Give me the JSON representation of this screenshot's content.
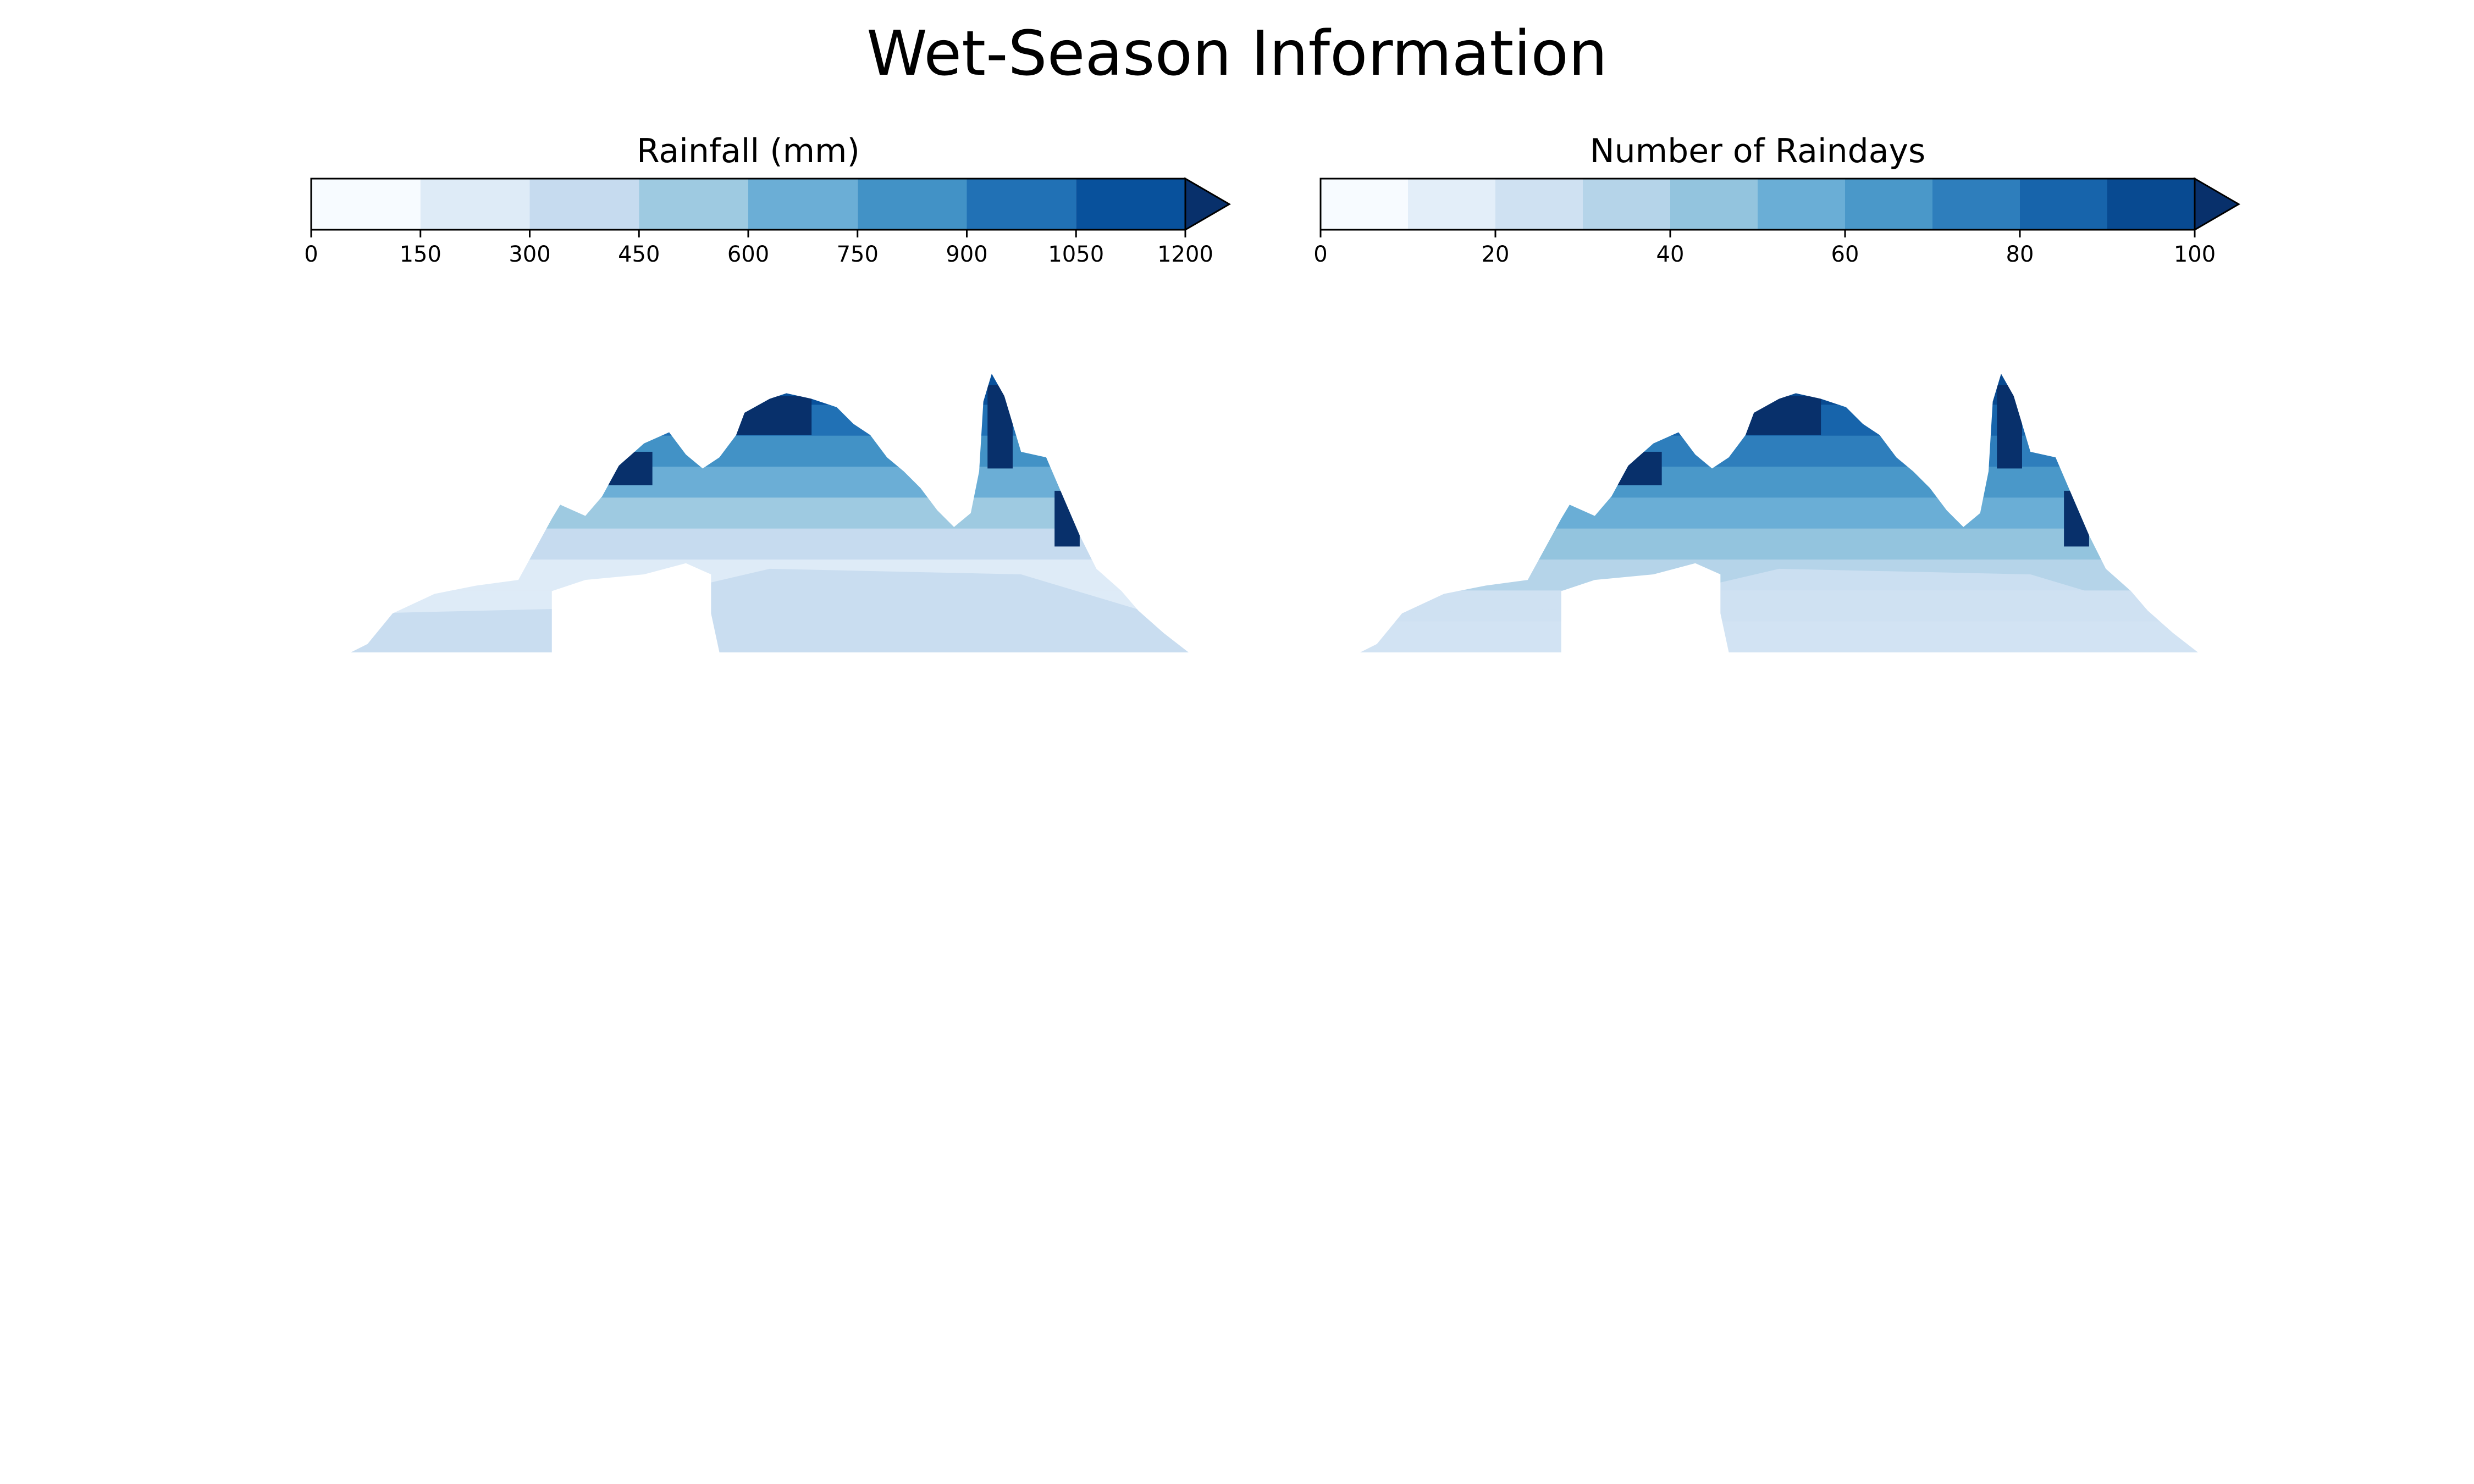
{
  "figure": {
    "title": "Wet-Season Information"
  },
  "chart_data": [
    {
      "type": "heatmap",
      "title": "Rainfall (mm)",
      "colorbar": {
        "levels": [
          0,
          150,
          300,
          450,
          600,
          750,
          900,
          1050,
          1200
        ],
        "tick_labels": [
          "0",
          "150",
          "300",
          "450",
          "600",
          "750",
          "900",
          "1050",
          "1200"
        ],
        "extend": "max",
        "colors": [
          "#f7fbff",
          "#deebf7",
          "#c6dbef",
          "#9ecae1",
          "#6baed6",
          "#4292c6",
          "#2171b5",
          "#08519c"
        ],
        "over_color": "#08306b"
      },
      "map": {
        "region": "Northern Australia (wet season)",
        "gradient": "highest near the northern coasts, decreasing southward",
        "min_level_approx": 150,
        "max_level_approx": 1200
      }
    },
    {
      "type": "heatmap",
      "title": "Number of Raindays",
      "colorbar": {
        "levels": [
          0,
          10,
          20,
          30,
          40,
          50,
          60,
          70,
          80,
          90,
          100
        ],
        "tick_labels": [
          "0",
          "20",
          "40",
          "60",
          "80",
          "100"
        ],
        "tick_values": [
          0,
          20,
          40,
          60,
          80,
          100
        ],
        "extend": "max",
        "colors": [
          "#f7fbff",
          "#e3eef9",
          "#cfe1f2",
          "#b5d4e9",
          "#93c4de",
          "#6aaed6",
          "#4a98c9",
          "#2e7ebc",
          "#1764ab",
          "#084a91"
        ],
        "over_color": "#08306b"
      },
      "map": {
        "region": "Northern Australia (wet season)",
        "gradient": "highest near the northern coasts, decreasing southward",
        "min_level_approx": 20,
        "max_level_approx": 100
      }
    }
  ]
}
